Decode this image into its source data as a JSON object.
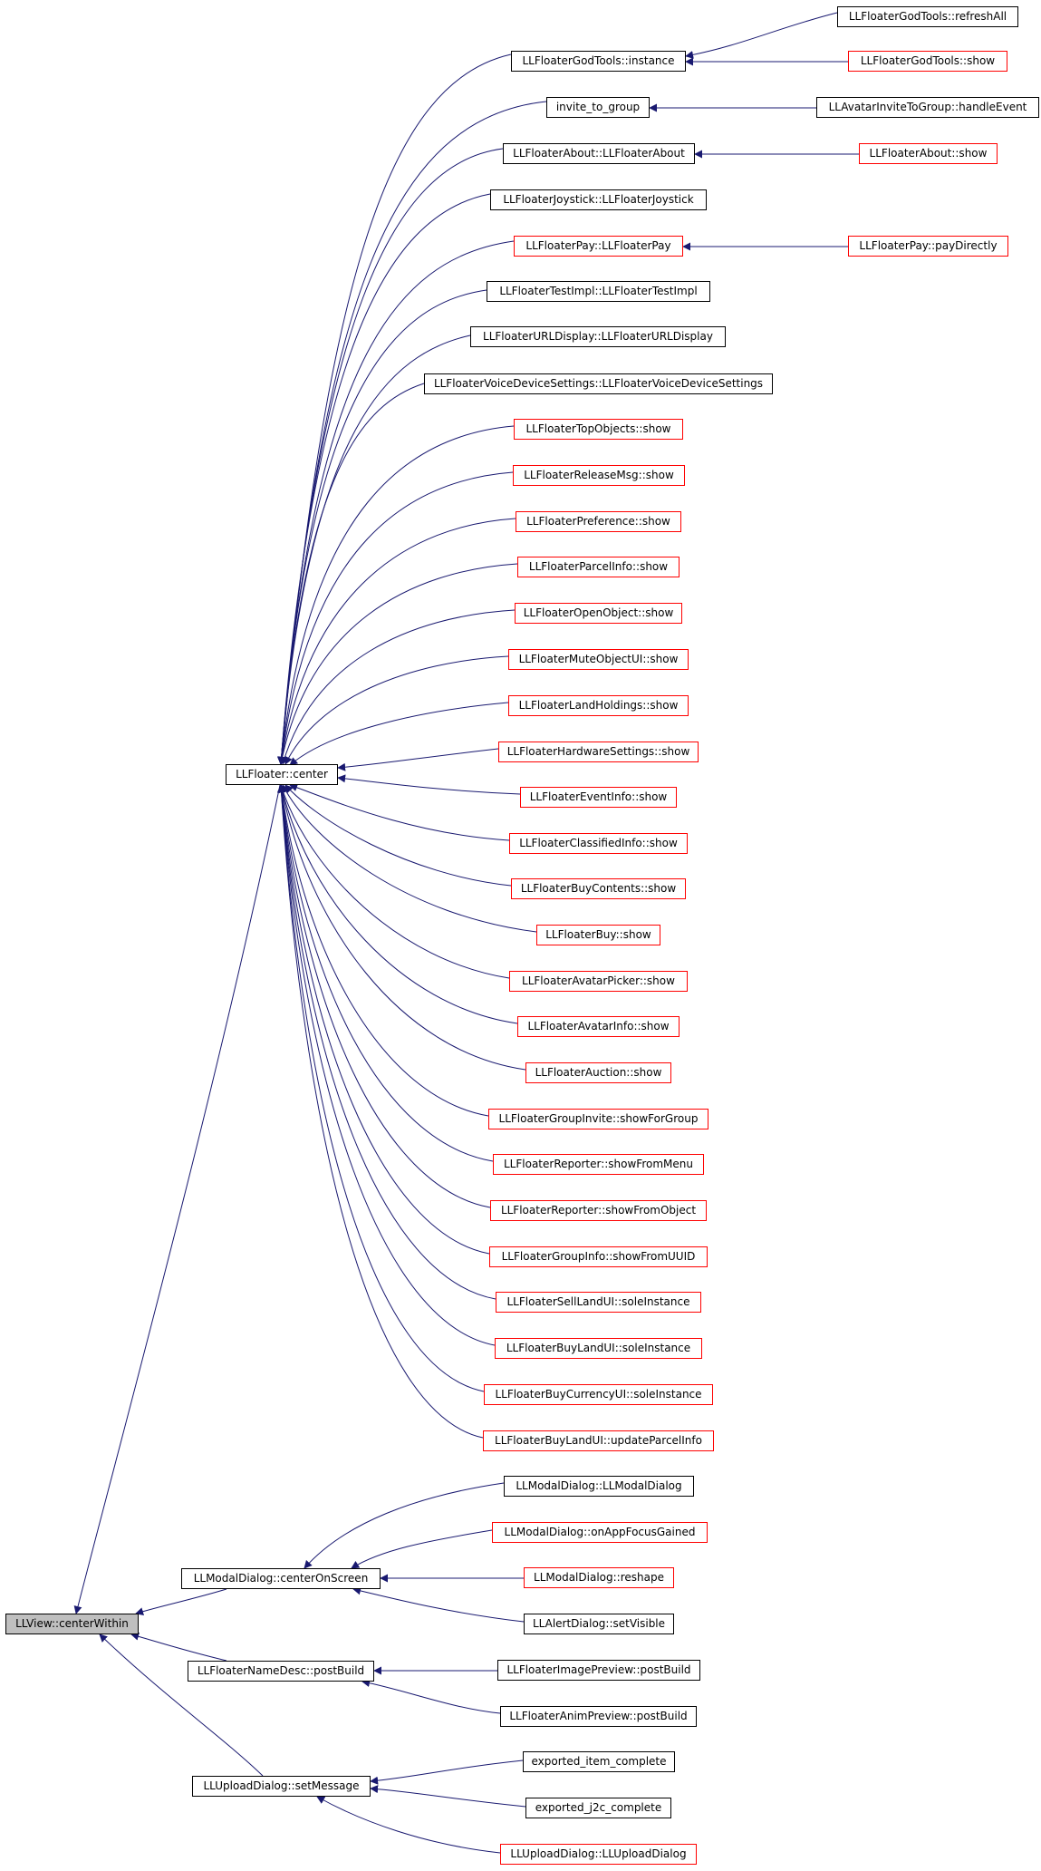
{
  "colors": {
    "edge": "#191970",
    "link_border": "#ff0000",
    "node_border": "#000000",
    "root_fill": "#bfbfbf"
  },
  "root": {
    "label": "LLView::centerWithin"
  },
  "level1": {
    "center": "LLFloater::center",
    "modal_center": "LLModalDialog::centerOnScreen",
    "name_desc": "LLFloaterNameDesc::postBuild",
    "upload_msg": "LLUploadDialog::setMessage"
  },
  "callers": {
    "god_instance": "LLFloaterGodTools::instance",
    "invite": "invite_to_group",
    "about_ctor": "LLFloaterAbout::LLFloaterAbout",
    "joystick": "LLFloaterJoystick::LLFloaterJoystick",
    "pay_ctor": "LLFloaterPay::LLFloaterPay",
    "testimpl": "LLFloaterTestImpl::LLFloaterTestImpl",
    "urldisplay": "LLFloaterURLDisplay::LLFloaterURLDisplay",
    "voicedev": "LLFloaterVoiceDeviceSettings::LLFloaterVoiceDeviceSettings",
    "topobjects": "LLFloaterTopObjects::show",
    "releasemsg": "LLFloaterReleaseMsg::show",
    "preference": "LLFloaterPreference::show",
    "parcelinfo": "LLFloaterParcelInfo::show",
    "openobject": "LLFloaterOpenObject::show",
    "muteobject": "LLFloaterMuteObjectUI::show",
    "landholdings": "LLFloaterLandHoldings::show",
    "hardware": "LLFloaterHardwareSettings::show",
    "eventinfo": "LLFloaterEventInfo::show",
    "classified": "LLFloaterClassifiedInfo::show",
    "buycontents": "LLFloaterBuyContents::show",
    "buy": "LLFloaterBuy::show",
    "avatarpicker": "LLFloaterAvatarPicker::show",
    "avatarinfo": "LLFloaterAvatarInfo::show",
    "auction": "LLFloaterAuction::show",
    "groupinvite": "LLFloaterGroupInvite::showForGroup",
    "reporter_menu": "LLFloaterReporter::showFromMenu",
    "reporter_object": "LLFloaterReporter::showFromObject",
    "groupinfo": "LLFloaterGroupInfo::showFromUUID",
    "sellland": "LLFloaterSellLandUI::soleInstance",
    "buyland": "LLFloaterBuyLandUI::soleInstance",
    "buycurrency": "LLFloaterBuyCurrencyUI::soleInstance",
    "buyland_parcel": "LLFloaterBuyLandUI::updateParcelInfo",
    "modal_ctor": "LLModalDialog::LLModalDialog",
    "modal_focus": "LLModalDialog::onAppFocusGained",
    "modal_reshape": "LLModalDialog::reshape",
    "alert_visible": "LLAlertDialog::setVisible",
    "image_preview": "LLFloaterImagePreview::postBuild",
    "anim_preview": "LLFloaterAnimPreview::postBuild",
    "exported_item": "exported_item_complete",
    "exported_j2c": "exported_j2c_complete",
    "upload_ctor": "LLUploadDialog::LLUploadDialog"
  },
  "outer_callers": {
    "god_refresh": "LLFloaterGodTools::refreshAll",
    "god_show": "LLFloaterGodTools::show",
    "invite_handle": "LLAvatarInviteToGroup::handleEvent",
    "about_show": "LLFloaterAbout::show",
    "pay_directly": "LLFloaterPay::payDirectly"
  }
}
